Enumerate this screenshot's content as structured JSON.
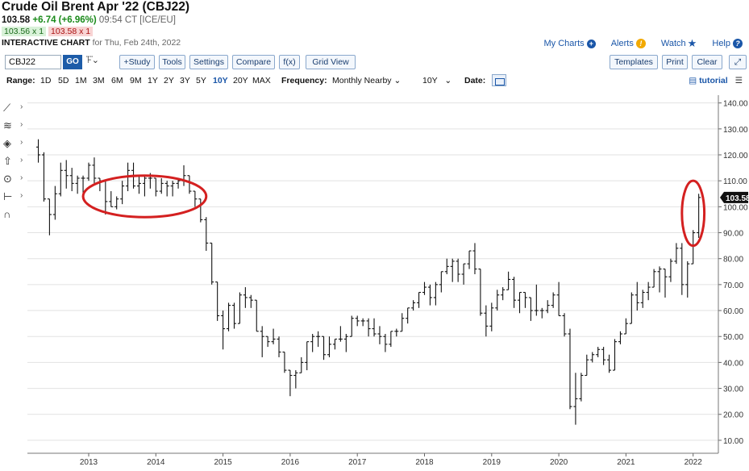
{
  "header": {
    "title": "Crude Oil Brent Apr '22 (CBJ22)",
    "last": "103.58",
    "change": "+6.74 (+6.96%)",
    "time": "09:54 CT [ICE/EU]",
    "bid": "103.56 x 1",
    "ask": "103.58 x 1",
    "interactive_label": "INTERACTIVE CHART",
    "interactive_date": "for Thu, Feb 24th, 2022"
  },
  "toplinks": {
    "my_charts": "My Charts",
    "alerts": "Alerts",
    "watch": "Watch",
    "help": "Help"
  },
  "toolbar": {
    "symbol": "CBJ22",
    "go": "GO",
    "study": "+Study",
    "tools": "Tools",
    "settings": "Settings",
    "compare": "Compare",
    "fx": "f(x)",
    "grid_view": "Grid View",
    "templates": "Templates",
    "print": "Print",
    "clear": "Clear"
  },
  "rangebar": {
    "range_label": "Range:",
    "ranges": [
      "1D",
      "5D",
      "1M",
      "3M",
      "6M",
      "9M",
      "1Y",
      "2Y",
      "3Y",
      "5Y",
      "10Y",
      "20Y",
      "MAX"
    ],
    "active_range": "10Y",
    "frequency_label": "Frequency:",
    "frequency_value": "Monthly Nearby",
    "period_value": "10Y",
    "date_label": "Date:",
    "tutorial": "tutorial"
  },
  "chart_data": {
    "type": "ohlc",
    "title": "",
    "xlabel": "",
    "ylabel": "",
    "ylim": [
      5,
      143
    ],
    "yticks": [
      10,
      20,
      30,
      40,
      50,
      60,
      70,
      80,
      90,
      100,
      110,
      120,
      130,
      140
    ],
    "yticks_labels": [
      "10.00",
      "20.00",
      "30.00",
      "40.00",
      "50.00",
      "60.00",
      "70.00",
      "80.00",
      "90.00",
      "100.00",
      "110.00",
      "120.00",
      "130.00",
      "140.00"
    ],
    "xticks": [
      "2013",
      "2014",
      "2015",
      "2016",
      "2017",
      "2018",
      "2019",
      "2020",
      "2021",
      "2022"
    ],
    "last_price": "103.58",
    "grid": "horizontal",
    "annotations": [
      {
        "type": "ellipse",
        "note": "2013-2014 range",
        "x_range": [
          "2012-12",
          "2014-10"
        ],
        "y_range": [
          96,
          112
        ]
      },
      {
        "type": "ellipse",
        "note": "Feb 2022 spike",
        "x_range": [
          "2021-11",
          "2022-03"
        ],
        "y_range": [
          85,
          110
        ]
      }
    ],
    "bars": [
      {
        "d": "2012-04",
        "o": 123,
        "h": 126,
        "l": 117,
        "c": 120
      },
      {
        "d": "2012-05",
        "o": 120,
        "h": 121,
        "l": 102,
        "c": 103
      },
      {
        "d": "2012-06",
        "o": 103,
        "h": 103,
        "l": 89,
        "c": 97
      },
      {
        "d": "2012-07",
        "o": 97,
        "h": 108,
        "l": 95,
        "c": 105
      },
      {
        "d": "2012-08",
        "o": 105,
        "h": 117,
        "l": 104,
        "c": 114
      },
      {
        "d": "2012-09",
        "o": 114,
        "h": 118,
        "l": 107,
        "c": 112
      },
      {
        "d": "2012-10",
        "o": 112,
        "h": 115,
        "l": 106,
        "c": 109
      },
      {
        "d": "2012-11",
        "o": 109,
        "h": 112,
        "l": 105,
        "c": 111
      },
      {
        "d": "2012-12",
        "o": 111,
        "h": 112,
        "l": 105,
        "c": 111
      },
      {
        "d": "2013-01",
        "o": 111,
        "h": 117,
        "l": 110,
        "c": 116
      },
      {
        "d": "2013-02",
        "o": 116,
        "h": 119,
        "l": 109,
        "c": 111
      },
      {
        "d": "2013-03",
        "o": 111,
        "h": 111,
        "l": 106,
        "c": 110
      },
      {
        "d": "2013-04",
        "o": 110,
        "h": 110,
        "l": 97,
        "c": 102
      },
      {
        "d": "2013-05",
        "o": 102,
        "h": 106,
        "l": 100,
        "c": 100
      },
      {
        "d": "2013-06",
        "o": 100,
        "h": 104,
        "l": 99,
        "c": 103
      },
      {
        "d": "2013-07",
        "o": 103,
        "h": 110,
        "l": 101,
        "c": 108
      },
      {
        "d": "2013-08",
        "o": 108,
        "h": 117,
        "l": 106,
        "c": 114
      },
      {
        "d": "2013-09",
        "o": 114,
        "h": 117,
        "l": 107,
        "c": 108
      },
      {
        "d": "2013-10",
        "o": 108,
        "h": 112,
        "l": 105,
        "c": 109
      },
      {
        "d": "2013-11",
        "o": 109,
        "h": 112,
        "l": 104,
        "c": 111
      },
      {
        "d": "2013-12",
        "o": 111,
        "h": 113,
        "l": 107,
        "c": 111
      },
      {
        "d": "2014-01",
        "o": 111,
        "h": 111,
        "l": 104,
        "c": 106
      },
      {
        "d": "2014-02",
        "o": 106,
        "h": 111,
        "l": 105,
        "c": 109
      },
      {
        "d": "2014-03",
        "o": 109,
        "h": 110,
        "l": 104,
        "c": 108
      },
      {
        "d": "2014-04",
        "o": 108,
        "h": 110,
        "l": 104,
        "c": 109
      },
      {
        "d": "2014-05",
        "o": 109,
        "h": 111,
        "l": 107,
        "c": 110
      },
      {
        "d": "2014-06",
        "o": 110,
        "h": 116,
        "l": 108,
        "c": 112
      },
      {
        "d": "2014-07",
        "o": 112,
        "h": 112,
        "l": 105,
        "c": 106
      },
      {
        "d": "2014-08",
        "o": 106,
        "h": 106,
        "l": 100,
        "c": 103
      },
      {
        "d": "2014-09",
        "o": 103,
        "h": 103,
        "l": 94,
        "c": 95
      },
      {
        "d": "2014-10",
        "o": 95,
        "h": 96,
        "l": 83,
        "c": 86
      },
      {
        "d": "2014-11",
        "o": 86,
        "h": 86,
        "l": 70,
        "c": 71
      },
      {
        "d": "2014-12",
        "o": 71,
        "h": 71,
        "l": 56,
        "c": 58
      },
      {
        "d": "2015-01",
        "o": 58,
        "h": 60,
        "l": 45,
        "c": 53
      },
      {
        "d": "2015-02",
        "o": 53,
        "h": 63,
        "l": 52,
        "c": 62
      },
      {
        "d": "2015-03",
        "o": 62,
        "h": 63,
        "l": 53,
        "c": 55
      },
      {
        "d": "2015-04",
        "o": 55,
        "h": 67,
        "l": 55,
        "c": 66
      },
      {
        "d": "2015-05",
        "o": 66,
        "h": 69,
        "l": 61,
        "c": 65
      },
      {
        "d": "2015-06",
        "o": 65,
        "h": 66,
        "l": 61,
        "c": 64
      },
      {
        "d": "2015-07",
        "o": 64,
        "h": 64,
        "l": 52,
        "c": 52
      },
      {
        "d": "2015-08",
        "o": 52,
        "h": 54,
        "l": 42,
        "c": 50
      },
      {
        "d": "2015-09",
        "o": 50,
        "h": 50,
        "l": 46,
        "c": 48
      },
      {
        "d": "2015-10",
        "o": 48,
        "h": 53,
        "l": 47,
        "c": 49
      },
      {
        "d": "2015-11",
        "o": 49,
        "h": 50,
        "l": 42,
        "c": 44
      },
      {
        "d": "2015-12",
        "o": 44,
        "h": 44,
        "l": 36,
        "c": 37
      },
      {
        "d": "2016-01",
        "o": 37,
        "h": 37,
        "l": 27,
        "c": 35
      },
      {
        "d": "2016-02",
        "o": 35,
        "h": 37,
        "l": 30,
        "c": 36
      },
      {
        "d": "2016-03",
        "o": 36,
        "h": 42,
        "l": 36,
        "c": 40
      },
      {
        "d": "2016-04",
        "o": 40,
        "h": 48,
        "l": 37,
        "c": 48
      },
      {
        "d": "2016-05",
        "o": 48,
        "h": 51,
        "l": 44,
        "c": 50
      },
      {
        "d": "2016-06",
        "o": 50,
        "h": 52,
        "l": 46,
        "c": 50
      },
      {
        "d": "2016-07",
        "o": 50,
        "h": 50,
        "l": 41,
        "c": 43
      },
      {
        "d": "2016-08",
        "o": 43,
        "h": 50,
        "l": 42,
        "c": 47
      },
      {
        "d": "2016-09",
        "o": 47,
        "h": 49,
        "l": 45,
        "c": 49
      },
      {
        "d": "2016-10",
        "o": 49,
        "h": 54,
        "l": 48,
        "c": 49
      },
      {
        "d": "2016-11",
        "o": 49,
        "h": 51,
        "l": 44,
        "c": 50
      },
      {
        "d": "2016-12",
        "o": 50,
        "h": 58,
        "l": 50,
        "c": 57
      },
      {
        "d": "2017-01",
        "o": 57,
        "h": 58,
        "l": 54,
        "c": 56
      },
      {
        "d": "2017-02",
        "o": 56,
        "h": 57,
        "l": 54,
        "c": 56
      },
      {
        "d": "2017-03",
        "o": 56,
        "h": 57,
        "l": 50,
        "c": 53
      },
      {
        "d": "2017-04",
        "o": 53,
        "h": 57,
        "l": 50,
        "c": 51
      },
      {
        "d": "2017-05",
        "o": 51,
        "h": 54,
        "l": 47,
        "c": 50
      },
      {
        "d": "2017-06",
        "o": 50,
        "h": 51,
        "l": 44,
        "c": 47
      },
      {
        "d": "2017-07",
        "o": 47,
        "h": 52,
        "l": 46,
        "c": 52
      },
      {
        "d": "2017-08",
        "o": 52,
        "h": 53,
        "l": 50,
        "c": 52
      },
      {
        "d": "2017-09",
        "o": 52,
        "h": 59,
        "l": 52,
        "c": 57
      },
      {
        "d": "2017-10",
        "o": 57,
        "h": 61,
        "l": 55,
        "c": 61
      },
      {
        "d": "2017-11",
        "o": 61,
        "h": 64,
        "l": 60,
        "c": 63
      },
      {
        "d": "2017-12",
        "o": 63,
        "h": 67,
        "l": 61,
        "c": 67
      },
      {
        "d": "2018-01",
        "o": 67,
        "h": 71,
        "l": 66,
        "c": 69
      },
      {
        "d": "2018-02",
        "o": 69,
        "h": 70,
        "l": 62,
        "c": 65
      },
      {
        "d": "2018-03",
        "o": 65,
        "h": 71,
        "l": 62,
        "c": 70
      },
      {
        "d": "2018-04",
        "o": 70,
        "h": 75,
        "l": 67,
        "c": 75
      },
      {
        "d": "2018-05",
        "o": 75,
        "h": 80,
        "l": 74,
        "c": 77
      },
      {
        "d": "2018-06",
        "o": 77,
        "h": 80,
        "l": 71,
        "c": 79
      },
      {
        "d": "2018-07",
        "o": 79,
        "h": 80,
        "l": 71,
        "c": 74
      },
      {
        "d": "2018-08",
        "o": 74,
        "h": 78,
        "l": 70,
        "c": 78
      },
      {
        "d": "2018-09",
        "o": 78,
        "h": 83,
        "l": 76,
        "c": 83
      },
      {
        "d": "2018-10",
        "o": 83,
        "h": 86,
        "l": 74,
        "c": 76
      },
      {
        "d": "2018-11",
        "o": 76,
        "h": 76,
        "l": 58,
        "c": 59
      },
      {
        "d": "2018-12",
        "o": 59,
        "h": 62,
        "l": 50,
        "c": 54
      },
      {
        "d": "2019-01",
        "o": 54,
        "h": 63,
        "l": 52,
        "c": 61
      },
      {
        "d": "2019-02",
        "o": 61,
        "h": 68,
        "l": 60,
        "c": 66
      },
      {
        "d": "2019-03",
        "o": 66,
        "h": 69,
        "l": 64,
        "c": 68
      },
      {
        "d": "2019-04",
        "o": 68,
        "h": 75,
        "l": 68,
        "c": 72
      },
      {
        "d": "2019-05",
        "o": 72,
        "h": 73,
        "l": 61,
        "c": 64
      },
      {
        "d": "2019-06",
        "o": 64,
        "h": 67,
        "l": 59,
        "c": 67
      },
      {
        "d": "2019-07",
        "o": 67,
        "h": 67,
        "l": 61,
        "c": 65
      },
      {
        "d": "2019-08",
        "o": 65,
        "h": 65,
        "l": 56,
        "c": 60
      },
      {
        "d": "2019-09",
        "o": 60,
        "h": 70,
        "l": 58,
        "c": 60
      },
      {
        "d": "2019-10",
        "o": 60,
        "h": 61,
        "l": 57,
        "c": 60
      },
      {
        "d": "2019-11",
        "o": 60,
        "h": 64,
        "l": 59,
        "c": 62
      },
      {
        "d": "2019-12",
        "o": 62,
        "h": 67,
        "l": 61,
        "c": 66
      },
      {
        "d": "2020-01",
        "o": 66,
        "h": 71,
        "l": 58,
        "c": 58
      },
      {
        "d": "2020-02",
        "o": 58,
        "h": 59,
        "l": 50,
        "c": 51
      },
      {
        "d": "2020-03",
        "o": 51,
        "h": 53,
        "l": 22,
        "c": 23
      },
      {
        "d": "2020-04",
        "o": 23,
        "h": 36,
        "l": 16,
        "c": 26
      },
      {
        "d": "2020-05",
        "o": 26,
        "h": 36,
        "l": 25,
        "c": 35
      },
      {
        "d": "2020-06",
        "o": 35,
        "h": 43,
        "l": 35,
        "c": 41
      },
      {
        "d": "2020-07",
        "o": 41,
        "h": 44,
        "l": 40,
        "c": 43
      },
      {
        "d": "2020-08",
        "o": 43,
        "h": 46,
        "l": 42,
        "c": 45
      },
      {
        "d": "2020-09",
        "o": 45,
        "h": 46,
        "l": 39,
        "c": 41
      },
      {
        "d": "2020-10",
        "o": 41,
        "h": 43,
        "l": 36,
        "c": 37
      },
      {
        "d": "2020-11",
        "o": 37,
        "h": 49,
        "l": 37,
        "c": 48
      },
      {
        "d": "2020-12",
        "o": 48,
        "h": 52,
        "l": 47,
        "c": 51
      },
      {
        "d": "2021-01",
        "o": 51,
        "h": 57,
        "l": 51,
        "c": 55
      },
      {
        "d": "2021-02",
        "o": 55,
        "h": 67,
        "l": 55,
        "c": 66
      },
      {
        "d": "2021-03",
        "o": 66,
        "h": 71,
        "l": 60,
        "c": 63
      },
      {
        "d": "2021-04",
        "o": 63,
        "h": 68,
        "l": 61,
        "c": 67
      },
      {
        "d": "2021-05",
        "o": 67,
        "h": 71,
        "l": 64,
        "c": 69
      },
      {
        "d": "2021-06",
        "o": 69,
        "h": 76,
        "l": 69,
        "c": 75
      },
      {
        "d": "2021-07",
        "o": 75,
        "h": 77,
        "l": 67,
        "c": 76
      },
      {
        "d": "2021-08",
        "o": 76,
        "h": 76,
        "l": 65,
        "c": 73
      },
      {
        "d": "2021-09",
        "o": 73,
        "h": 80,
        "l": 71,
        "c": 79
      },
      {
        "d": "2021-10",
        "o": 79,
        "h": 86,
        "l": 78,
        "c": 84
      },
      {
        "d": "2021-11",
        "o": 84,
        "h": 86,
        "l": 66,
        "c": 70
      },
      {
        "d": "2021-12",
        "o": 70,
        "h": 79,
        "l": 65,
        "c": 78
      },
      {
        "d": "2022-01",
        "o": 78,
        "h": 91,
        "l": 78,
        "c": 90
      },
      {
        "d": "2022-02",
        "o": 90,
        "h": 105,
        "l": 88,
        "c": 103.58
      }
    ]
  }
}
